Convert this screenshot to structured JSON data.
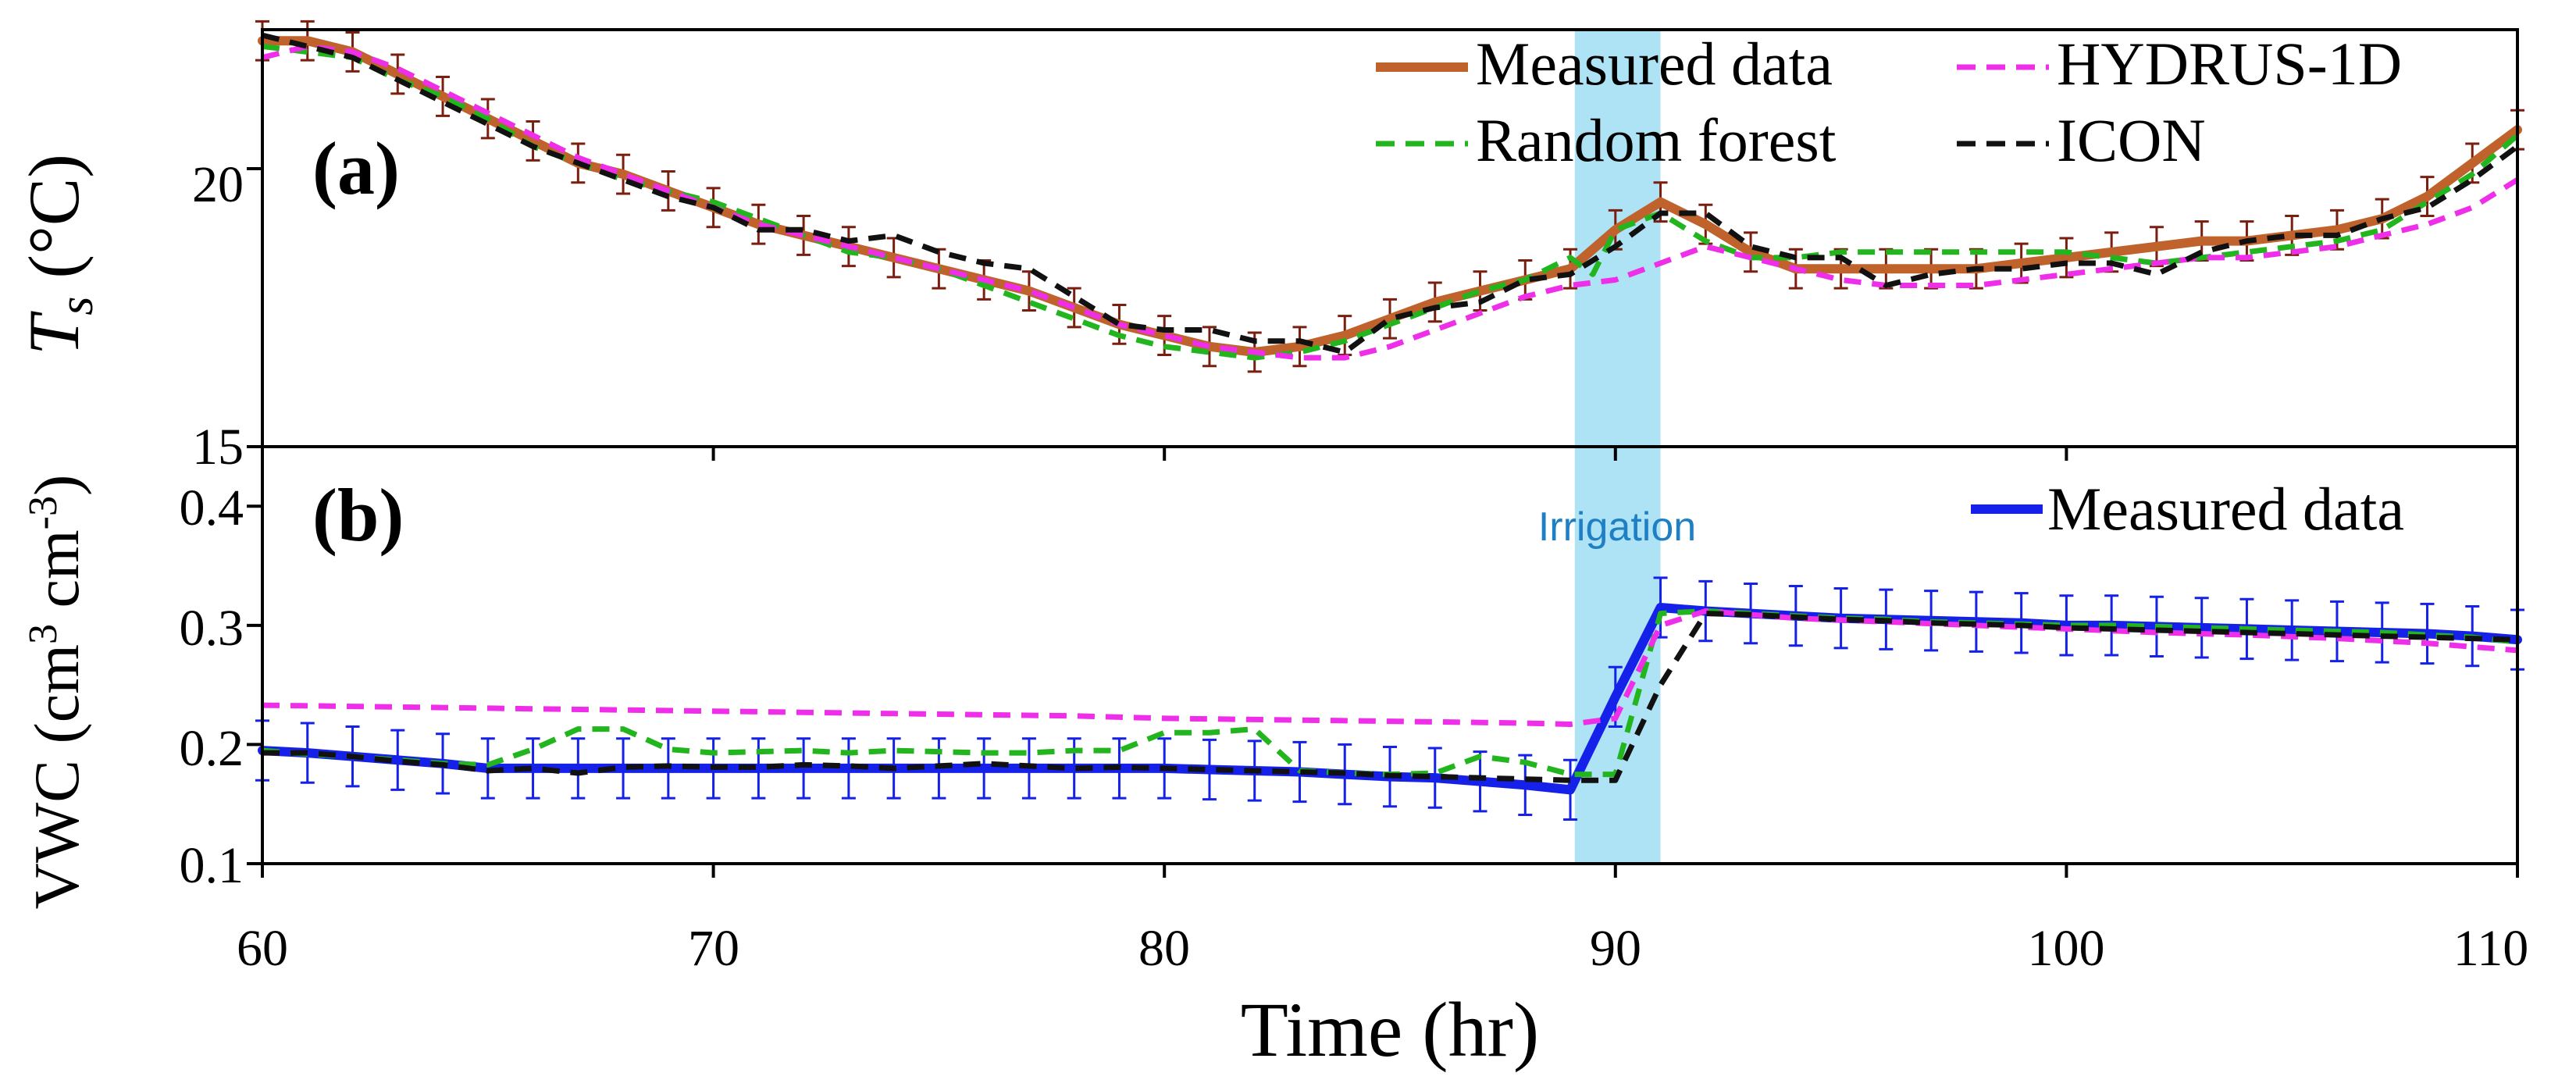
{
  "chart_data": [
    {
      "panel": "a",
      "type": "line",
      "panel_label": "(a)",
      "ylabel_main": "T",
      "ylabel_sub": "s",
      "ylabel_unit": " (°C)",
      "ylim": [
        15,
        22.5
      ],
      "yticks": [
        15,
        20
      ],
      "xlim": [
        60,
        110
      ],
      "legend_position": "top-right",
      "series": [
        {
          "name": "Measured data",
          "color": "#c0622b",
          "style": "solid",
          "x": [
            60,
            61,
            62,
            63,
            64,
            65,
            66,
            67,
            68,
            69,
            70,
            71,
            72,
            73,
            74,
            75,
            76,
            77,
            78,
            79,
            80,
            81,
            82,
            83,
            84,
            85,
            86,
            87,
            88,
            89,
            90,
            91,
            92,
            93,
            94,
            95,
            96,
            97,
            98,
            99,
            100,
            101,
            102,
            103,
            104,
            105,
            106,
            107,
            108,
            109,
            110
          ],
          "y": [
            22.3,
            22.3,
            22.1,
            21.7,
            21.3,
            20.9,
            20.5,
            20.1,
            19.9,
            19.6,
            19.3,
            19.0,
            18.8,
            18.6,
            18.4,
            18.2,
            18.0,
            17.8,
            17.5,
            17.2,
            17.0,
            16.8,
            16.7,
            16.8,
            17.0,
            17.3,
            17.6,
            17.8,
            18.0,
            18.2,
            18.9,
            19.4,
            19.0,
            18.5,
            18.2,
            18.2,
            18.2,
            18.2,
            18.2,
            18.3,
            18.4,
            18.5,
            18.6,
            18.7,
            18.7,
            18.8,
            18.9,
            19.1,
            19.5,
            20.1,
            20.7
          ],
          "error": 0.35
        },
        {
          "name": "Random forest",
          "color": "#22b51e",
          "style": "dashed",
          "x": [
            60,
            61,
            62,
            63,
            64,
            65,
            66,
            67,
            68,
            69,
            70,
            71,
            72,
            73,
            74,
            75,
            76,
            77,
            78,
            79,
            80,
            81,
            82,
            83,
            84,
            85,
            86,
            87,
            88,
            89,
            89.5,
            90,
            91,
            92,
            93,
            94,
            95,
            96,
            97,
            98,
            99,
            100,
            101,
            102,
            103,
            104,
            105,
            106,
            107,
            108,
            109,
            110
          ],
          "y": [
            22.2,
            22.1,
            22.0,
            21.6,
            21.3,
            20.9,
            20.4,
            20.1,
            19.8,
            19.6,
            19.4,
            19.1,
            18.8,
            18.5,
            18.4,
            18.2,
            17.9,
            17.6,
            17.3,
            17.0,
            16.8,
            16.7,
            16.6,
            16.7,
            16.9,
            17.2,
            17.5,
            17.8,
            18.0,
            18.4,
            18.1,
            18.9,
            19.2,
            18.7,
            18.4,
            18.4,
            18.5,
            18.5,
            18.5,
            18.5,
            18.5,
            18.5,
            18.4,
            18.3,
            18.4,
            18.5,
            18.6,
            18.7,
            18.9,
            19.4,
            19.9,
            20.6
          ],
          "error": null
        },
        {
          "name": "HYDRUS-1D",
          "color": "#ee2ee8",
          "style": "dashed",
          "x": [
            60,
            61,
            62,
            63,
            64,
            65,
            66,
            67,
            68,
            69,
            70,
            71,
            72,
            73,
            74,
            75,
            76,
            77,
            78,
            79,
            80,
            81,
            82,
            83,
            84,
            85,
            86,
            87,
            88,
            89,
            90,
            91,
            92,
            93,
            94,
            95,
            96,
            97,
            98,
            99,
            100,
            101,
            102,
            103,
            104,
            105,
            106,
            107,
            108,
            109,
            110
          ],
          "y": [
            22.0,
            22.2,
            22.1,
            21.8,
            21.4,
            21.0,
            20.6,
            20.2,
            19.9,
            19.6,
            19.3,
            19.0,
            18.8,
            18.6,
            18.4,
            18.2,
            18.0,
            17.8,
            17.5,
            17.2,
            17.0,
            16.8,
            16.7,
            16.6,
            16.6,
            16.8,
            17.1,
            17.4,
            17.7,
            17.9,
            18.0,
            18.3,
            18.6,
            18.4,
            18.2,
            18.0,
            17.9,
            17.9,
            17.9,
            18.0,
            18.1,
            18.2,
            18.3,
            18.4,
            18.4,
            18.5,
            18.6,
            18.8,
            19.0,
            19.3,
            19.8
          ],
          "error": null
        },
        {
          "name": "ICON",
          "color": "#111111",
          "style": "dashed",
          "x": [
            60,
            61,
            62,
            63,
            64,
            65,
            66,
            67,
            68,
            69,
            70,
            71,
            72,
            73,
            74,
            75,
            76,
            77,
            78,
            79,
            80,
            81,
            82,
            83,
            84,
            85,
            86,
            87,
            88,
            89,
            90,
            91,
            92,
            93,
            94,
            95,
            96,
            97,
            98,
            99,
            100,
            101,
            102,
            103,
            104,
            105,
            106,
            107,
            108,
            109,
            110
          ],
          "y": [
            22.4,
            22.2,
            22.0,
            21.6,
            21.2,
            20.8,
            20.4,
            20.1,
            19.8,
            19.5,
            19.3,
            18.9,
            18.9,
            18.7,
            18.8,
            18.5,
            18.3,
            18.2,
            17.7,
            17.2,
            17.1,
            17.1,
            16.9,
            16.9,
            16.7,
            17.3,
            17.5,
            17.6,
            18.0,
            18.1,
            18.6,
            19.2,
            19.2,
            18.6,
            18.4,
            18.4,
            17.9,
            18.1,
            18.2,
            18.2,
            18.3,
            18.3,
            18.1,
            18.5,
            18.7,
            18.8,
            18.8,
            19.1,
            19.3,
            19.8,
            20.4
          ],
          "error": null
        }
      ]
    },
    {
      "panel": "b",
      "type": "line",
      "panel_label": "(b)",
      "ylabel_main": "VWC (cm",
      "ylabel_sup1": "3",
      "ylabel_mid": " cm",
      "ylabel_sup2": "-3",
      "ylabel_end": ")",
      "ylim": [
        0.1,
        0.45
      ],
      "yticks": [
        0.1,
        0.2,
        0.3,
        0.4
      ],
      "ytick_labels": [
        "0.1",
        "0.2",
        "0.3",
        "0.4"
      ],
      "xlim": [
        60,
        110
      ],
      "legend_position": "top-right",
      "series": [
        {
          "name": "Measured data",
          "color": "#1520e8",
          "style": "solid",
          "x": [
            60,
            61,
            62,
            63,
            64,
            65,
            66,
            67,
            68,
            69,
            70,
            71,
            72,
            73,
            74,
            75,
            76,
            77,
            78,
            79,
            80,
            81,
            82,
            83,
            84,
            85,
            86,
            87,
            88,
            89,
            90,
            91,
            92,
            93,
            94,
            95,
            96,
            97,
            98,
            99,
            100,
            101,
            102,
            103,
            104,
            105,
            106,
            107,
            108,
            109,
            110
          ],
          "y": [
            0.195,
            0.193,
            0.19,
            0.187,
            0.184,
            0.18,
            0.18,
            0.18,
            0.18,
            0.18,
            0.18,
            0.18,
            0.18,
            0.18,
            0.18,
            0.18,
            0.18,
            0.18,
            0.18,
            0.18,
            0.18,
            0.179,
            0.178,
            0.177,
            0.175,
            0.173,
            0.172,
            0.169,
            0.166,
            0.162,
            0.24,
            0.315,
            0.312,
            0.31,
            0.308,
            0.306,
            0.305,
            0.304,
            0.303,
            0.302,
            0.3,
            0.3,
            0.299,
            0.298,
            0.297,
            0.296,
            0.295,
            0.294,
            0.293,
            0.291,
            0.288
          ],
          "error": 0.025
        },
        {
          "name": "Random forest",
          "color": "#22b51e",
          "style": "dashed",
          "x": [
            60,
            61,
            62,
            63,
            64,
            65,
            66,
            67,
            68,
            69,
            70,
            71,
            72,
            73,
            74,
            75,
            76,
            77,
            78,
            79,
            80,
            81,
            82,
            83,
            84,
            85,
            86,
            87,
            88,
            89,
            90,
            91,
            92,
            93,
            94,
            95,
            96,
            97,
            98,
            99,
            100,
            101,
            102,
            103,
            104,
            105,
            106,
            107,
            108,
            109,
            110
          ],
          "y": [
            0.195,
            0.192,
            0.19,
            0.187,
            0.184,
            0.183,
            0.196,
            0.213,
            0.213,
            0.196,
            0.193,
            0.194,
            0.195,
            0.193,
            0.195,
            0.194,
            0.193,
            0.193,
            0.195,
            0.195,
            0.21,
            0.21,
            0.213,
            0.178,
            0.176,
            0.175,
            0.176,
            0.19,
            0.185,
            0.175,
            0.175,
            0.31,
            0.312,
            0.31,
            0.308,
            0.306,
            0.305,
            0.303,
            0.302,
            0.301,
            0.3,
            0.3,
            0.299,
            0.298,
            0.297,
            0.296,
            0.295,
            0.294,
            0.292,
            0.29,
            0.286
          ],
          "error": null
        },
        {
          "name": "HYDRUS-1D",
          "color": "#ee2ee8",
          "style": "dashed",
          "x": [
            60,
            62,
            64,
            66,
            68,
            70,
            72,
            74,
            76,
            78,
            80,
            82,
            84,
            86,
            88,
            89,
            90,
            91,
            92,
            94,
            96,
            98,
            100,
            102,
            104,
            106,
            108,
            110
          ],
          "y": [
            0.233,
            0.232,
            0.231,
            0.23,
            0.229,
            0.228,
            0.227,
            0.226,
            0.225,
            0.224,
            0.222,
            0.221,
            0.22,
            0.219,
            0.218,
            0.217,
            0.222,
            0.3,
            0.312,
            0.306,
            0.303,
            0.3,
            0.297,
            0.294,
            0.292,
            0.289,
            0.285,
            0.279
          ],
          "error": null
        },
        {
          "name": "ICON",
          "color": "#111111",
          "style": "dashed",
          "x": [
            60,
            61,
            62,
            63,
            64,
            65,
            66,
            67,
            68,
            69,
            70,
            71,
            72,
            73,
            74,
            75,
            76,
            77,
            78,
            79,
            80,
            81,
            82,
            83,
            84,
            85,
            86,
            87,
            88,
            89,
            90,
            91,
            92,
            93,
            94,
            95,
            96,
            97,
            98,
            99,
            100,
            101,
            102,
            103,
            104,
            105,
            106,
            107,
            108,
            109,
            110
          ],
          "y": [
            0.193,
            0.193,
            0.19,
            0.186,
            0.183,
            0.178,
            0.18,
            0.176,
            0.181,
            0.182,
            0.181,
            0.181,
            0.183,
            0.182,
            0.18,
            0.182,
            0.184,
            0.182,
            0.18,
            0.181,
            0.18,
            0.179,
            0.178,
            0.177,
            0.176,
            0.174,
            0.173,
            0.172,
            0.171,
            0.17,
            0.17,
            0.25,
            0.31,
            0.309,
            0.307,
            0.305,
            0.304,
            0.302,
            0.301,
            0.3,
            0.298,
            0.297,
            0.296,
            0.295,
            0.294,
            0.293,
            0.292,
            0.291,
            0.29,
            0.289,
            0.288
          ],
          "error": null
        }
      ]
    }
  ],
  "legend_a": [
    {
      "label": "Measured data",
      "color": "#c0622b",
      "style": "solid"
    },
    {
      "label": "HYDRUS-1D",
      "color": "#ee2ee8",
      "style": "dashed"
    },
    {
      "label": "Random forest",
      "color": "#22b51e",
      "style": "dashed"
    },
    {
      "label": "ICON",
      "color": "#111111",
      "style": "dashed"
    }
  ],
  "legend_b": [
    {
      "label": "Measured data",
      "color": "#1520e8",
      "style": "solid"
    }
  ],
  "irrigation": {
    "label": "Irrigation",
    "start": 89.1,
    "end": 91.0,
    "fill": "#aee2f5",
    "label_color": "#1f7fc4"
  },
  "xaxis": {
    "label": "Time (hr)",
    "ticks": [
      60,
      70,
      80,
      90,
      100,
      110
    ],
    "tick_labels": [
      "60",
      "70",
      "80",
      "90",
      "100",
      "110"
    ]
  },
  "yaxis_a": {
    "tick_labels": [
      "15",
      "20"
    ]
  }
}
